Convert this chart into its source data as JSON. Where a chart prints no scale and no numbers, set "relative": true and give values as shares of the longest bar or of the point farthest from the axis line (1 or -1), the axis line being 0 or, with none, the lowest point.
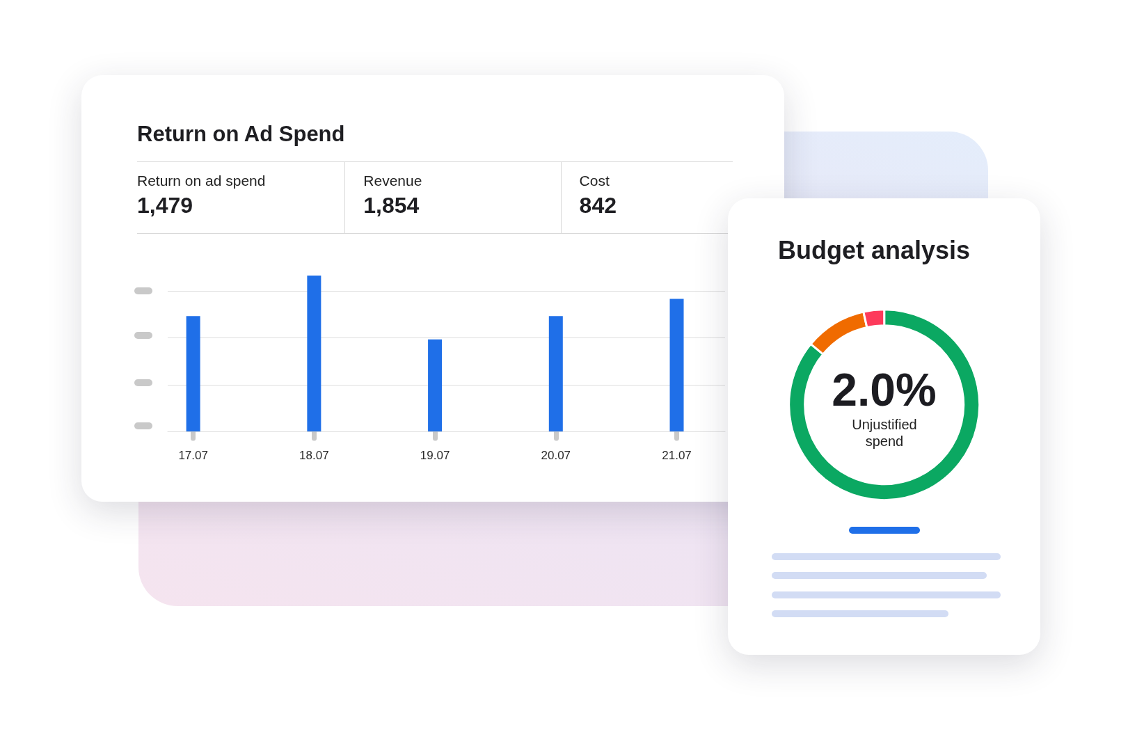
{
  "chart_data": [
    {
      "type": "bar",
      "title": "Return on Ad Spend",
      "annotations": [
        "Return on ad spend",
        "1,479",
        "Revenue",
        "1,854",
        "Cost",
        "842"
      ],
      "categories": [
        "17.07",
        "18.07",
        "19.07",
        "20.07",
        "21.07"
      ],
      "values": [
        0.74,
        1,
        0.59,
        0.74,
        0.85
      ],
      "color": "#1f6fe8",
      "relative": true,
      "grid": "y"
    },
    {
      "type": "donut",
      "title": "Budget analysis",
      "categories": [
        null,
        null,
        null
      ],
      "values": [
        86,
        10.5,
        3.5
      ],
      "colors": [
        "#0ba862",
        "#f06b00",
        "#fd3a5b"
      ],
      "annotations": [
        "2.0%",
        "Unjustified spend"
      ]
    }
  ]
}
